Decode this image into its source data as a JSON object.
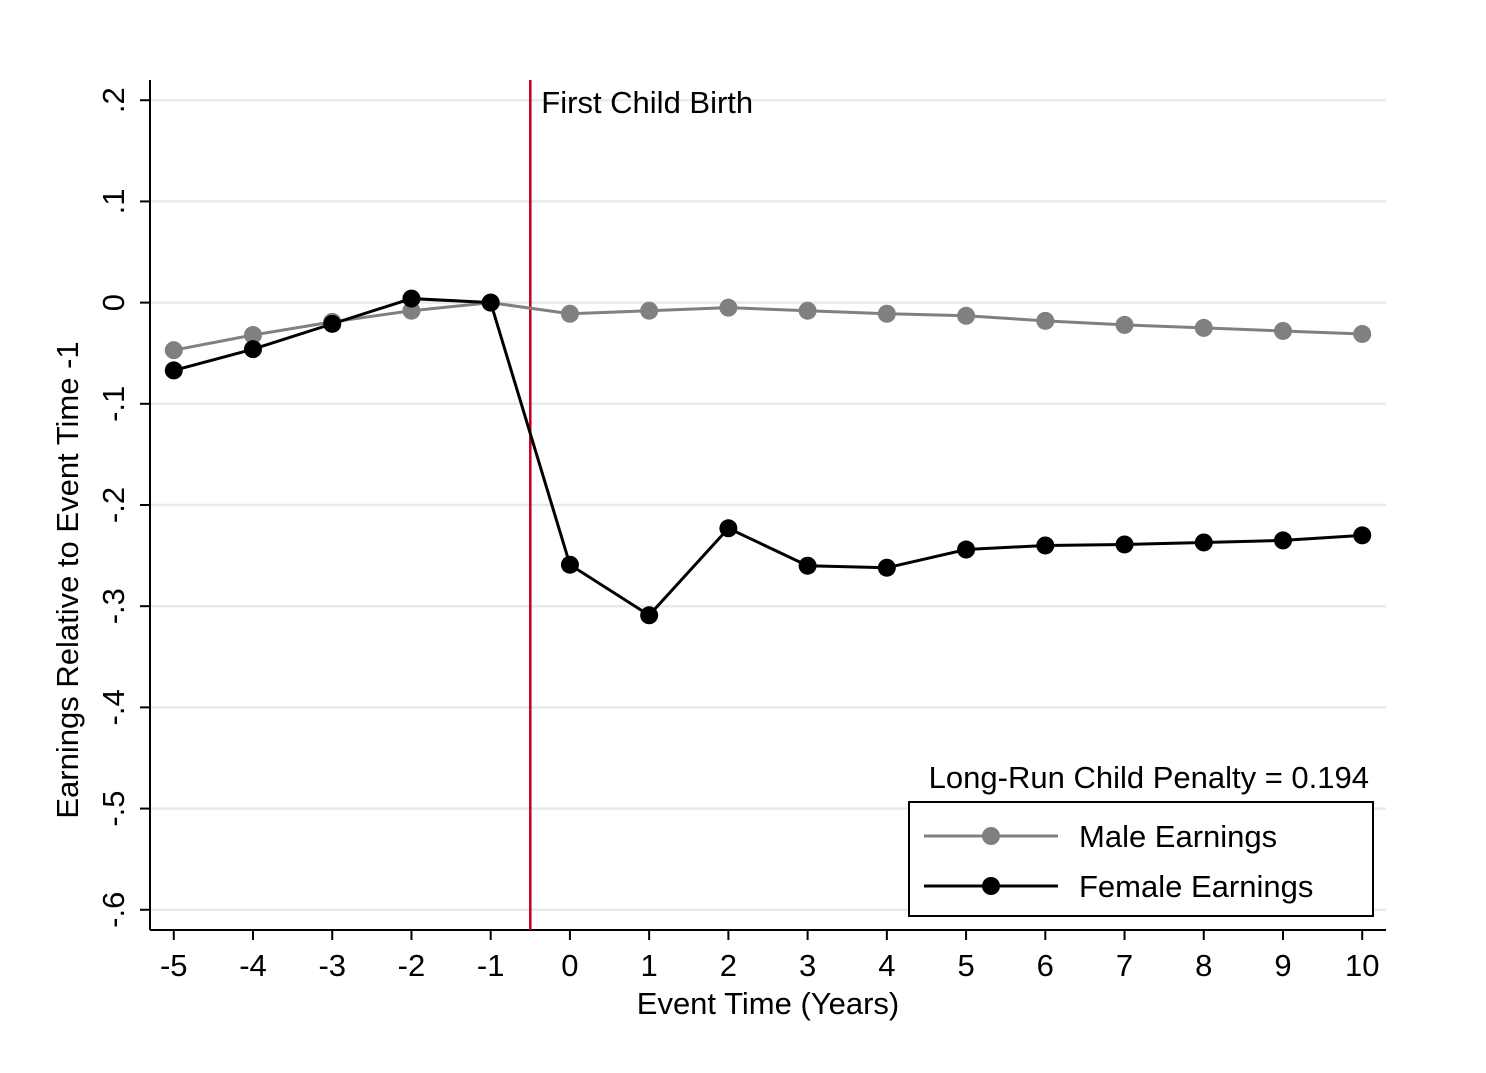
{
  "chart_data": {
    "type": "line",
    "title": "",
    "xlabel": "Event Time (Years)",
    "ylabel": "Earnings Relative to Event Time -1",
    "x": [
      -5,
      -4,
      -3,
      -2,
      -1,
      0,
      1,
      2,
      3,
      4,
      5,
      6,
      7,
      8,
      9,
      10
    ],
    "xlim": [
      -5.3,
      10.3
    ],
    "ylim": [
      -0.62,
      0.22
    ],
    "xticks": [
      -5,
      -4,
      -3,
      -2,
      -1,
      0,
      1,
      2,
      3,
      4,
      5,
      6,
      7,
      8,
      9,
      10
    ],
    "xtick_labels": [
      "-5",
      "-4",
      "-3",
      "-2",
      "-1",
      "0",
      "1",
      "2",
      "3",
      "4",
      "5",
      "6",
      "7",
      "8",
      "9",
      "10"
    ],
    "yticks": [
      0.2,
      0.1,
      0,
      -0.1,
      -0.2,
      -0.3,
      -0.4,
      -0.5,
      -0.6
    ],
    "ytick_labels": [
      ".2",
      ".1",
      "0",
      "-.1",
      "-.2",
      "-.3",
      "-.4",
      "-.5",
      "-.6"
    ],
    "grid": true,
    "series": [
      {
        "name": "Male Earnings",
        "color": "#808080",
        "values": [
          -0.047,
          -0.032,
          -0.019,
          -0.008,
          0.0,
          -0.011,
          -0.008,
          -0.005,
          -0.008,
          -0.011,
          -0.013,
          -0.018,
          -0.022,
          -0.025,
          -0.028,
          -0.031
        ]
      },
      {
        "name": "Female Earnings",
        "color": "#000000",
        "values": [
          -0.067,
          -0.046,
          -0.021,
          0.004,
          0.0,
          -0.259,
          -0.309,
          -0.223,
          -0.26,
          -0.262,
          -0.244,
          -0.24,
          -0.239,
          -0.237,
          -0.235,
          -0.23
        ]
      }
    ],
    "event_line": {
      "x": -0.5,
      "label": "First Child Birth",
      "color": "#c00020"
    },
    "annotation": "Long-Run Child Penalty = 0.194",
    "legend_position": "bottom-right"
  }
}
